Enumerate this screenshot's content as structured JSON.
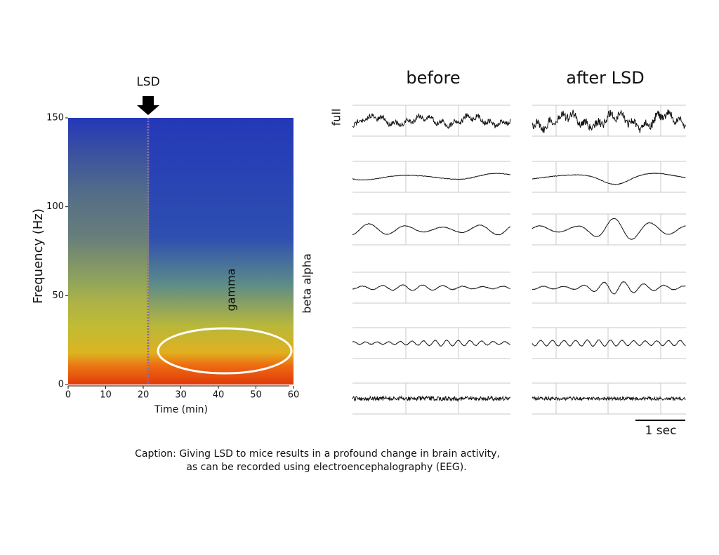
{
  "spectrogram": {
    "marker": "LSD",
    "ylabel": "Frequency (Hz)",
    "xlabel": "Time (min)",
    "xlim": [
      0,
      60
    ],
    "ylim": [
      0,
      150
    ],
    "xticks": [
      0,
      10,
      20,
      30,
      40,
      50,
      60
    ],
    "yticks": [
      0,
      50,
      100,
      150
    ],
    "band_labels": [
      "gamma",
      "beta alpha"
    ]
  },
  "traces": {
    "columns": [
      "before",
      "after LSD"
    ],
    "row_label": "full",
    "scale_bar": "1 sec"
  },
  "caption": [
    "Caption: Giving LSD to mice results in a profound change in brain activity,",
    "as can be recorded using electroencephalography (EEG)."
  ]
}
